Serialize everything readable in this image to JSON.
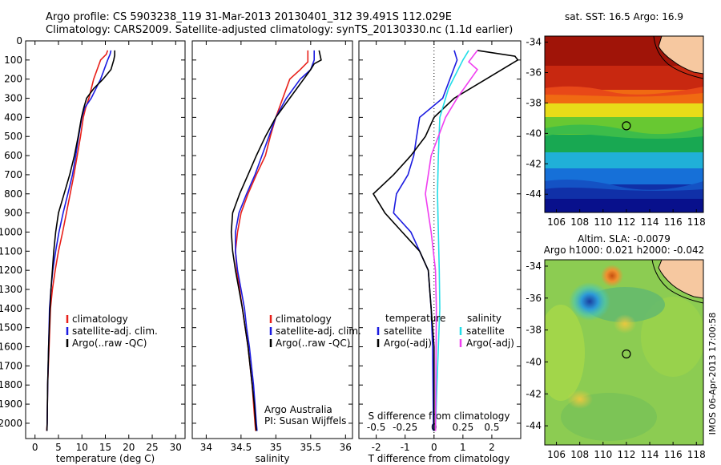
{
  "header": {
    "line1": "Argo profile: CS 5903238_119 31-Mar-2013 20130401_312 39.491S 112.029E",
    "line2": "Climatology: CARS2009. Satellite-adjusted climatology: synTS_20130330.nc (1.1d earlier)"
  },
  "colors": {
    "climatology": "#e8201a",
    "satellite": "#1b1be0",
    "argo": "#000000",
    "satellite_diff_S": "#22dde8",
    "argo_diff_S": "#f03ef0"
  },
  "chart_data": [
    {
      "type": "line",
      "name": "temperature",
      "xlabel": "temperature (deg C)",
      "xlim": [
        -2,
        32
      ],
      "xticks": [
        0,
        5,
        10,
        15,
        20,
        25,
        30
      ],
      "ylim": [
        2080,
        0
      ],
      "yticks": [
        0,
        100,
        200,
        300,
        400,
        500,
        600,
        700,
        800,
        900,
        1000,
        1100,
        1200,
        1300,
        1400,
        1500,
        1600,
        1700,
        1800,
        1900,
        2000
      ],
      "legend": [
        "climatology",
        "satellite-adj. clim.",
        "Argo(..raw -QC)"
      ],
      "legend_position": "lower-right",
      "series": [
        {
          "name": "climatology",
          "color": "#e8201a",
          "points": [
            [
              15.5,
              50
            ],
            [
              15.2,
              70
            ],
            [
              14,
              100
            ],
            [
              12.5,
              200
            ],
            [
              11.5,
              300
            ],
            [
              10.8,
              350
            ],
            [
              10.3,
              400
            ],
            [
              9.7,
              500
            ],
            [
              9.0,
              600
            ],
            [
              8.3,
              700
            ],
            [
              7.5,
              800
            ],
            [
              6.7,
              900
            ],
            [
              5.9,
              1000
            ],
            [
              5.0,
              1100
            ],
            [
              4.3,
              1200
            ],
            [
              3.7,
              1300
            ],
            [
              3.3,
              1400
            ],
            [
              3.0,
              1600
            ],
            [
              2.7,
              1800
            ],
            [
              2.6,
              2000
            ],
            [
              2.5,
              2040
            ]
          ]
        },
        {
          "name": "satellite-adj. clim.",
          "color": "#1b1be0",
          "points": [
            [
              16.2,
              50
            ],
            [
              16.0,
              70
            ],
            [
              15.5,
              100
            ],
            [
              14.0,
              200
            ],
            [
              12.0,
              300
            ],
            [
              10.6,
              350
            ],
            [
              10.0,
              400
            ],
            [
              9.3,
              500
            ],
            [
              8.7,
              600
            ],
            [
              8.0,
              700
            ],
            [
              7.0,
              800
            ],
            [
              6.0,
              900
            ],
            [
              5.1,
              1000
            ],
            [
              4.4,
              1100
            ],
            [
              3.8,
              1200
            ],
            [
              3.4,
              1300
            ],
            [
              3.1,
              1400
            ],
            [
              2.9,
              1600
            ],
            [
              2.7,
              1800
            ],
            [
              2.6,
              2000
            ],
            [
              2.55,
              2040
            ]
          ]
        },
        {
          "name": "Argo(..raw -QC)",
          "color": "#000000",
          "points": [
            [
              17.0,
              50
            ],
            [
              17.0,
              75
            ],
            [
              16.8,
              100
            ],
            [
              16.2,
              150
            ],
            [
              14.5,
              200
            ],
            [
              12.5,
              250
            ],
            [
              11.0,
              300
            ],
            [
              10.4,
              350
            ],
            [
              9.9,
              400
            ],
            [
              9.2,
              500
            ],
            [
              8.4,
              600
            ],
            [
              7.4,
              700
            ],
            [
              6.2,
              800
            ],
            [
              5.0,
              900
            ],
            [
              4.4,
              1000
            ],
            [
              4.0,
              1100
            ],
            [
              3.7,
              1200
            ],
            [
              3.4,
              1300
            ],
            [
              3.2,
              1400
            ],
            [
              2.9,
              1600
            ],
            [
              2.7,
              1800
            ],
            [
              2.6,
              2000
            ],
            [
              2.55,
              2040
            ]
          ]
        }
      ]
    },
    {
      "type": "line",
      "name": "salinity",
      "xlabel": "salinity",
      "xlim": [
        33.8,
        36.1
      ],
      "xticks": [
        34,
        34.5,
        35,
        35.5,
        36
      ],
      "ylim": [
        2080,
        0
      ],
      "legend": [
        "climatology",
        "satellite-adj. clim.",
        "Argo(..raw -QC)"
      ],
      "legend_position": "lower-right",
      "annotation": [
        "Argo Australia",
        "PI: Susan Wijffels"
      ],
      "series": [
        {
          "name": "climatology",
          "color": "#e8201a",
          "points": [
            [
              35.46,
              50
            ],
            [
              35.46,
              110
            ],
            [
              35.35,
              150
            ],
            [
              35.2,
              200
            ],
            [
              35.1,
              300
            ],
            [
              35.0,
              400
            ],
            [
              34.92,
              500
            ],
            [
              34.85,
              600
            ],
            [
              34.72,
              700
            ],
            [
              34.6,
              800
            ],
            [
              34.5,
              900
            ],
            [
              34.45,
              1000
            ],
            [
              34.42,
              1100
            ],
            [
              34.44,
              1200
            ],
            [
              34.48,
              1300
            ],
            [
              34.52,
              1400
            ],
            [
              34.56,
              1500
            ],
            [
              34.6,
              1600
            ],
            [
              34.63,
              1700
            ],
            [
              34.66,
              1800
            ],
            [
              34.68,
              1900
            ],
            [
              34.7,
              2000
            ],
            [
              34.71,
              2040
            ]
          ]
        },
        {
          "name": "satellite-adj. clim.",
          "color": "#1b1be0",
          "points": [
            [
              35.55,
              50
            ],
            [
              35.55,
              100
            ],
            [
              35.5,
              150
            ],
            [
              35.35,
              200
            ],
            [
              35.15,
              300
            ],
            [
              35.0,
              400
            ],
            [
              34.9,
              500
            ],
            [
              34.8,
              600
            ],
            [
              34.7,
              700
            ],
            [
              34.58,
              800
            ],
            [
              34.47,
              900
            ],
            [
              34.42,
              1000
            ],
            [
              34.42,
              1100
            ],
            [
              34.45,
              1200
            ],
            [
              34.5,
              1300
            ],
            [
              34.55,
              1400
            ],
            [
              34.58,
              1500
            ],
            [
              34.62,
              1600
            ],
            [
              34.65,
              1700
            ],
            [
              34.68,
              1800
            ],
            [
              34.7,
              1900
            ],
            [
              34.72,
              2000
            ],
            [
              34.73,
              2040
            ]
          ]
        },
        {
          "name": "Argo(..raw -QC)",
          "color": "#000000",
          "points": [
            [
              35.62,
              50
            ],
            [
              35.65,
              100
            ],
            [
              35.55,
              120
            ],
            [
              35.5,
              150
            ],
            [
              35.4,
              200
            ],
            [
              35.2,
              300
            ],
            [
              35.0,
              400
            ],
            [
              34.85,
              500
            ],
            [
              34.72,
              600
            ],
            [
              34.6,
              700
            ],
            [
              34.48,
              800
            ],
            [
              34.38,
              900
            ],
            [
              34.36,
              1000
            ],
            [
              34.38,
              1100
            ],
            [
              34.42,
              1200
            ],
            [
              34.47,
              1300
            ],
            [
              34.52,
              1400
            ],
            [
              34.56,
              1500
            ],
            [
              34.6,
              1600
            ],
            [
              34.63,
              1700
            ],
            [
              34.66,
              1800
            ],
            [
              34.69,
              1900
            ],
            [
              34.71,
              2000
            ],
            [
              34.72,
              2040
            ]
          ]
        }
      ]
    },
    {
      "type": "line",
      "name": "difference",
      "xlabel": "T difference from climatology",
      "xlabel_top": "S difference from climatology",
      "xlim": [
        -2.6,
        3.0
      ],
      "xticks": [
        -2,
        -1,
        0,
        1,
        2
      ],
      "xticks_S": [
        -0.5,
        -0.25,
        0,
        0.25,
        0.5
      ],
      "xtick_labels_S": [
        "-0.5",
        "-0.25",
        "0",
        "0.25",
        "0.5"
      ],
      "legend": {
        "temperature": "temperature",
        "salinity": "salinity",
        "t_sat": "satellite",
        "t_argo": "Argo(-adj)",
        "s_sat": "satellite",
        "s_argo": "Argo(-adj)"
      },
      "series": [
        {
          "name": "temperature satellite",
          "color": "#1b1be0",
          "points": [
            [
              0.7,
              50
            ],
            [
              0.8,
              100
            ],
            [
              0.3,
              300
            ],
            [
              -0.5,
              400
            ],
            [
              -0.6,
              500
            ],
            [
              -0.7,
              600
            ],
            [
              -0.9,
              700
            ],
            [
              -1.3,
              800
            ],
            [
              -1.4,
              900
            ],
            [
              -0.8,
              1000
            ],
            [
              -0.5,
              1100
            ],
            [
              -0.2,
              1200
            ],
            [
              -0.1,
              1400
            ],
            [
              -0.05,
              1600
            ],
            [
              -0.02,
              2040
            ]
          ]
        },
        {
          "name": "temperature Argo(-adj)",
          "color": "#000000",
          "points": [
            [
              1.5,
              50
            ],
            [
              2.8,
              80
            ],
            [
              2.9,
              100
            ],
            [
              1.8,
              200
            ],
            [
              0.7,
              300
            ],
            [
              0,
              400
            ],
            [
              -0.3,
              500
            ],
            [
              -0.8,
              600
            ],
            [
              -1.4,
              700
            ],
            [
              -2.1,
              800
            ],
            [
              -1.7,
              900
            ],
            [
              -1.1,
              1000
            ],
            [
              -0.5,
              1100
            ],
            [
              -0.2,
              1200
            ],
            [
              -0.1,
              1400
            ],
            [
              0,
              1600
            ],
            [
              0,
              2040
            ]
          ]
        },
        {
          "name": "salinity satellite",
          "color": "#22dde8",
          "points": [
            [
              1.2,
              50
            ],
            [
              1.0,
              100
            ],
            [
              0.5,
              250
            ],
            [
              0.2,
              400
            ],
            [
              0.15,
              600
            ],
            [
              0.12,
              800
            ],
            [
              0.15,
              1000
            ],
            [
              0.18,
              1200
            ],
            [
              0.2,
              1400
            ],
            [
              0.15,
              1600
            ],
            [
              0.1,
              1800
            ],
            [
              0.05,
              2040
            ]
          ]
        },
        {
          "name": "salinity Argo(-adj)",
          "color": "#f03ef0",
          "points": [
            [
              1.5,
              50
            ],
            [
              1.2,
              110
            ],
            [
              1.5,
              150
            ],
            [
              0.8,
              300
            ],
            [
              0.4,
              400
            ],
            [
              -0.1,
              600
            ],
            [
              -0.3,
              800
            ],
            [
              -0.1,
              1000
            ],
            [
              0.05,
              1200
            ],
            [
              0.08,
              1400
            ],
            [
              0.05,
              2040
            ]
          ]
        }
      ]
    },
    {
      "type": "heatmap",
      "name": "sst-map",
      "title": "sat. SST: 16.5  Argo: 16.9",
      "xticks": [
        106,
        108,
        110,
        112,
        114,
        116,
        118
      ],
      "yticks": [
        -34,
        -36,
        -38,
        -40,
        -42,
        -44
      ],
      "xlim": [
        105,
        118.6
      ],
      "ylim": [
        -45.2,
        -33.6
      ],
      "marker": [
        112,
        -39.5
      ]
    },
    {
      "type": "heatmap",
      "name": "sla-map",
      "title": "Altim. SLA: -0.0079",
      "subtitle": "Argo h1000: 0.021  h2000: -0.042",
      "xticks": [
        106,
        108,
        110,
        112,
        114,
        116,
        118
      ],
      "yticks": [
        -34,
        -36,
        -38,
        -40,
        -42,
        -44
      ],
      "xlim": [
        105,
        118.6
      ],
      "ylim": [
        -45.2,
        -33.6
      ],
      "marker": [
        112,
        -39.5
      ]
    }
  ],
  "footer": {
    "credit": "IMOS 06-Apr-2013 17:00:58"
  }
}
